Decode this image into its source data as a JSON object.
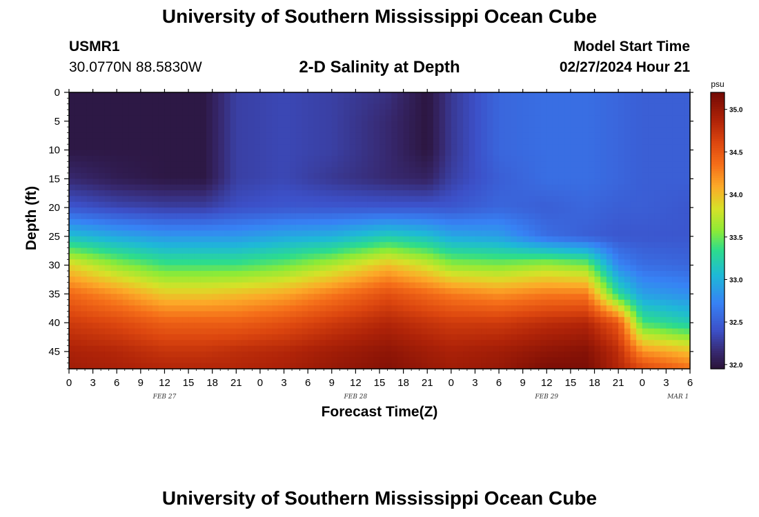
{
  "header": {
    "main_title": "University of Southern Mississippi Ocean Cube",
    "station_id": "USMR1",
    "station_coords": "30.0770N  88.5830W",
    "chart_title": "2-D Salinity at Depth",
    "model_start_label": "Model Start Time",
    "model_start_value": "02/27/2024 Hour 21",
    "footer_title": "University of Southern Mississippi Ocean Cube"
  },
  "chart_data": {
    "type": "heatmap",
    "title": "2-D Salinity at Depth",
    "xlabel": "Forecast Time(Z)",
    "ylabel": "Depth (ft)",
    "x_range_hours": [
      0,
      78
    ],
    "x_tick_step_hours": 3,
    "x_tick_labels": [
      "0",
      "3",
      "6",
      "9",
      "12",
      "15",
      "18",
      "21",
      "0",
      "3",
      "6",
      "9",
      "12",
      "15",
      "18",
      "21",
      "0",
      "3",
      "6",
      "9",
      "12",
      "15",
      "18",
      "21",
      "0",
      "3",
      "6"
    ],
    "date_labels": [
      {
        "hour": 12,
        "label": "FEB 27"
      },
      {
        "hour": 36,
        "label": "FEB 28"
      },
      {
        "hour": 60,
        "label": "FEB 29"
      },
      {
        "hour": 76.5,
        "label": "MAR 1"
      }
    ],
    "y_range_ft": [
      0,
      48
    ],
    "y_ticks": [
      0,
      5,
      10,
      15,
      20,
      25,
      30,
      35,
      40,
      45
    ],
    "colorbar": {
      "unit": "psu",
      "min": 31.95,
      "max": 35.2,
      "ticks": [
        "32.0",
        "32.5",
        "33.0",
        "33.5",
        "34.0",
        "34.5",
        "35.0"
      ]
    },
    "profiles_note": "Each row: salinity (psu) at depths 0,5,10,15,20,25,30,35,40,45,48 ft for the given forecast hour",
    "depths_ft": [
      0,
      5,
      10,
      15,
      20,
      25,
      30,
      35,
      40,
      45,
      48
    ],
    "profiles": [
      {
        "hour": 0,
        "salinity": [
          32.0,
          32.0,
          32.0,
          32.15,
          32.45,
          33.1,
          33.9,
          34.4,
          34.7,
          34.9,
          34.95
        ]
      },
      {
        "hour": 6,
        "salinity": [
          32.0,
          32.0,
          32.0,
          32.05,
          32.35,
          32.95,
          33.6,
          34.2,
          34.6,
          34.85,
          34.9
        ]
      },
      {
        "hour": 12,
        "salinity": [
          32.0,
          32.0,
          32.0,
          32.0,
          32.3,
          32.85,
          33.4,
          33.95,
          34.45,
          34.75,
          34.85
        ]
      },
      {
        "hour": 17,
        "salinity": [
          32.0,
          32.0,
          32.0,
          32.0,
          32.3,
          32.85,
          33.4,
          33.95,
          34.45,
          34.75,
          34.85
        ]
      },
      {
        "hour": 21,
        "salinity": [
          32.3,
          32.3,
          32.3,
          32.3,
          32.4,
          32.85,
          33.4,
          34.0,
          34.45,
          34.8,
          34.85
        ]
      },
      {
        "hour": 27,
        "salinity": [
          32.35,
          32.35,
          32.35,
          32.35,
          32.45,
          32.95,
          33.5,
          34.1,
          34.55,
          34.85,
          34.9
        ]
      },
      {
        "hour": 33,
        "salinity": [
          32.3,
          32.3,
          32.3,
          32.25,
          32.45,
          33.0,
          33.7,
          34.3,
          34.7,
          34.95,
          35.0
        ]
      },
      {
        "hour": 40,
        "salinity": [
          32.2,
          32.15,
          32.15,
          32.15,
          32.45,
          33.2,
          34.0,
          34.55,
          34.85,
          35.05,
          35.1
        ]
      },
      {
        "hour": 45,
        "salinity": [
          31.98,
          31.98,
          31.98,
          32.1,
          32.45,
          33.1,
          33.8,
          34.4,
          34.75,
          34.95,
          35.0
        ]
      },
      {
        "hour": 48,
        "salinity": [
          32.25,
          32.25,
          32.25,
          32.3,
          32.45,
          32.95,
          33.6,
          34.3,
          34.7,
          34.9,
          34.95
        ]
      },
      {
        "hour": 54,
        "salinity": [
          32.55,
          32.55,
          32.55,
          32.5,
          32.55,
          32.9,
          33.55,
          34.2,
          34.7,
          34.95,
          35.0
        ]
      },
      {
        "hour": 60,
        "salinity": [
          32.6,
          32.6,
          32.6,
          32.6,
          32.5,
          32.6,
          33.65,
          34.3,
          34.8,
          35.05,
          35.15
        ]
      },
      {
        "hour": 65,
        "salinity": [
          32.6,
          32.6,
          32.6,
          32.6,
          32.55,
          32.5,
          33.55,
          34.3,
          34.85,
          35.1,
          35.15
        ]
      },
      {
        "hour": 69,
        "salinity": [
          32.55,
          32.55,
          32.55,
          32.55,
          32.5,
          32.45,
          32.75,
          33.3,
          34.5,
          34.8,
          34.85
        ]
      },
      {
        "hour": 72,
        "salinity": [
          32.5,
          32.5,
          32.5,
          32.5,
          32.5,
          32.45,
          32.6,
          32.9,
          33.4,
          34.2,
          34.6
        ]
      },
      {
        "hour": 78,
        "salinity": [
          32.5,
          32.5,
          32.5,
          32.5,
          32.45,
          32.45,
          32.55,
          32.8,
          33.2,
          34.0,
          34.35
        ]
      }
    ]
  }
}
